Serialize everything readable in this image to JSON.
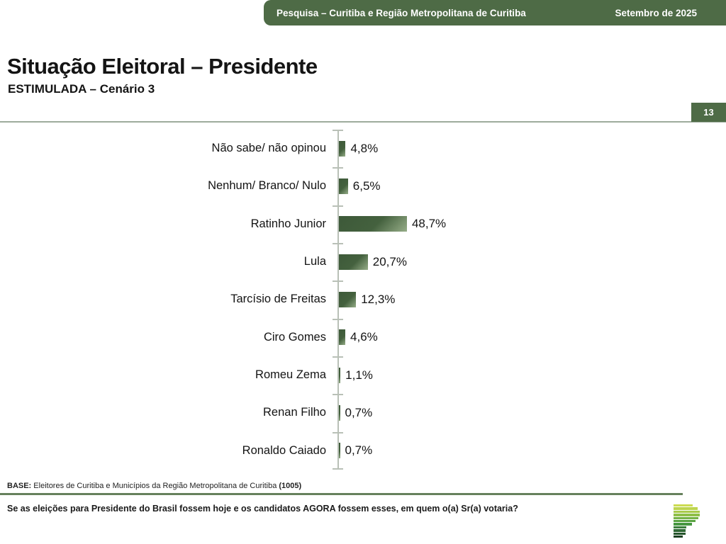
{
  "header": {
    "title": "Pesquisa – Curitiba e Região Metropolitana de Curitiba",
    "date": "Setembro de 2025"
  },
  "page": {
    "title": "Situação Eleitoral – Presidente",
    "subtitle": "ESTIMULADA – Cenário 3",
    "page_number": "13"
  },
  "chart_data": {
    "type": "bar",
    "orientation": "horizontal",
    "title": "Situação Eleitoral – Presidente (Estimulada – Cenário 3)",
    "categories": [
      "Não sabe/ não opinou",
      "Nenhum/ Branco/ Nulo",
      "Ratinho Junior",
      "Lula",
      "Tarcísio de Freitas",
      "Ciro Gomes",
      "Romeu Zema",
      "Renan Filho",
      "Ronaldo Caiado"
    ],
    "values": [
      4.8,
      6.5,
      48.7,
      20.7,
      12.3,
      4.6,
      1.1,
      0.7,
      0.7
    ],
    "value_labels": [
      "4,8%",
      "6,5%",
      "48,7%",
      "20,7%",
      "12,3%",
      "4,6%",
      "1,1%",
      "0,7%",
      "0,7%"
    ],
    "xlabel": "",
    "ylabel": "",
    "xlim": [
      0,
      100
    ],
    "grid": false,
    "legend": false,
    "bar_color_dark": "#3d5939",
    "bar_color_light": "#96ad88"
  },
  "footer": {
    "base_label": "BASE:",
    "base_text": " Eleitores de Curitiba e Municípios da Região Metropolitana de Curitiba ",
    "base_count": "(1005)",
    "question": "Se as eleições para Presidente do Brasil fossem hoje e os candidatos AGORA fossem esses, em quem o(a) Sr(a) votaria?"
  },
  "colors": {
    "brand_green": "#4e6b46",
    "axis_gray": "#b9c0b7",
    "rule_green": "#66815c",
    "divider_gray": "#9dab9c"
  },
  "logo": {
    "name": "parana-pesquisas-logo",
    "stripes": [
      {
        "color": "#ccdb52",
        "width": 27,
        "height": 3.4
      },
      {
        "color": "#bdd44e",
        "width": 34,
        "height": 3.4
      },
      {
        "color": "#a8ca4b",
        "width": 37,
        "height": 3.4
      },
      {
        "color": "#8fbf49",
        "width": 37,
        "height": 3.4
      },
      {
        "color": "#74b246",
        "width": 35,
        "height": 3.4
      },
      {
        "color": "#5aa443",
        "width": 31,
        "height": 3.4
      },
      {
        "color": "#479741",
        "width": 26,
        "height": 3.4
      },
      {
        "color": "#3b7e3c",
        "width": 18,
        "height": 3.4
      },
      {
        "color": "#2f6735",
        "width": 17,
        "height": 3.4
      },
      {
        "color": "#26552c",
        "width": 17,
        "height": 3.4
      },
      {
        "color": "#1b3f22",
        "width": 13,
        "height": 3.4
      }
    ]
  }
}
